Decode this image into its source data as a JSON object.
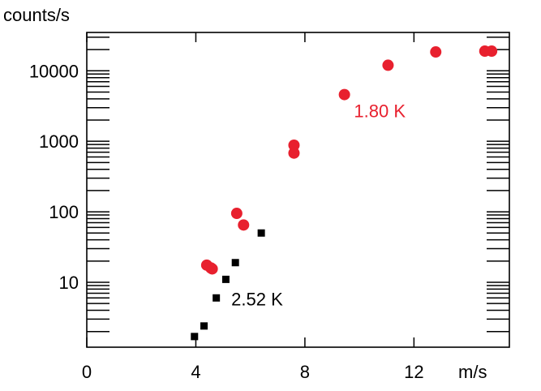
{
  "chart_data": {
    "type": "scatter",
    "ylabel": "counts/s",
    "xlabel": "m/s",
    "x_scale": "linear",
    "y_scale": "log",
    "xlim": [
      0,
      15.5
    ],
    "ylim": [
      1.2,
      35000
    ],
    "x_ticks": [
      {
        "value": 0,
        "label": "0"
      },
      {
        "value": 4,
        "label": "4"
      },
      {
        "value": 8,
        "label": "8"
      },
      {
        "value": 12,
        "label": "12"
      }
    ],
    "y_ticks": [
      {
        "value": 10,
        "label": "10"
      },
      {
        "value": 100,
        "label": "100"
      },
      {
        "value": 1000,
        "label": "1000"
      },
      {
        "value": 10000,
        "label": "10000"
      }
    ],
    "grid": false,
    "series": [
      {
        "name": "1.80 K",
        "marker": "circle",
        "color": "#e8202e",
        "points": [
          {
            "x": 4.4,
            "y": 17.5
          },
          {
            "x": 4.55,
            "y": 16
          },
          {
            "x": 4.6,
            "y": 15.5
          },
          {
            "x": 5.5,
            "y": 95
          },
          {
            "x": 5.75,
            "y": 65
          },
          {
            "x": 7.6,
            "y": 880
          },
          {
            "x": 7.6,
            "y": 680
          },
          {
            "x": 9.45,
            "y": 4600
          },
          {
            "x": 11.05,
            "y": 12000
          },
          {
            "x": 12.8,
            "y": 18500
          },
          {
            "x": 14.6,
            "y": 19000
          },
          {
            "x": 14.85,
            "y": 19000
          }
        ]
      },
      {
        "name": "2.52 K",
        "marker": "square",
        "color": "#000000",
        "points": [
          {
            "x": 3.95,
            "y": 1.7
          },
          {
            "x": 4.3,
            "y": 2.4
          },
          {
            "x": 4.75,
            "y": 6
          },
          {
            "x": 5.1,
            "y": 11
          },
          {
            "x": 5.45,
            "y": 19
          },
          {
            "x": 6.4,
            "y": 50
          }
        ]
      }
    ],
    "annotations": [
      {
        "text": "1.80 K",
        "color": "#e8202e",
        "x": 9.8,
        "y": 2700
      },
      {
        "text": "2.52 K",
        "color": "#000000",
        "x": 5.3,
        "y": 5.8
      }
    ]
  }
}
